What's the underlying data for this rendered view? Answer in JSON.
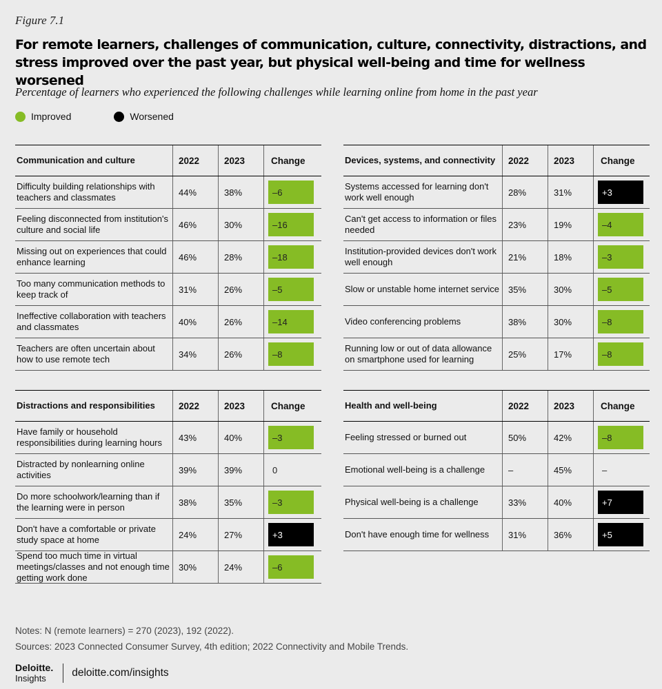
{
  "figure_label": "Figure 7.1",
  "title": "For remote learners, challenges of communication, culture, connectivity, distractions, and stress improved over the past year, but physical well-being and time for wellness worsened",
  "subtitle": "Percentage of learners who experienced the following challenges while learning online from home in the past year",
  "colors": {
    "improved": "#86bc25",
    "worsened": "#000000",
    "background": "#ebebeb"
  },
  "legend": {
    "improved": "Improved",
    "worsened": "Worsened"
  },
  "chart_data": {
    "type": "table",
    "columns": [
      "2022",
      "2023",
      "Change"
    ],
    "panels": [
      {
        "name": "Communication and culture",
        "rows": [
          {
            "label": "Difficulty building relationships with teachers and classmates",
            "y2022": "44%",
            "y2023": "38%",
            "change": "–6",
            "status": "improved"
          },
          {
            "label": "Feeling disconnected from institution's culture and social life",
            "y2022": "46%",
            "y2023": "30%",
            "change": "–16",
            "status": "improved"
          },
          {
            "label": "Missing out on experiences that could enhance learning",
            "y2022": "46%",
            "y2023": "28%",
            "change": "–18",
            "status": "improved"
          },
          {
            "label": "Too many communication methods to keep track of",
            "y2022": "31%",
            "y2023": "26%",
            "change": "–5",
            "status": "improved"
          },
          {
            "label": "Ineffective collaboration with teachers and classmates",
            "y2022": "40%",
            "y2023": "26%",
            "change": "–14",
            "status": "improved"
          },
          {
            "label": "Teachers are often uncertain about how to use remote tech",
            "y2022": "34%",
            "y2023": "26%",
            "change": "–8",
            "status": "improved"
          }
        ]
      },
      {
        "name": "Devices, systems, and connectivity",
        "rows": [
          {
            "label": "Systems accessed for learning don't work well enough",
            "y2022": "28%",
            "y2023": "31%",
            "change": "+3",
            "status": "worsened"
          },
          {
            "label": "Can't get access to information or files needed",
            "y2022": "23%",
            "y2023": "19%",
            "change": "–4",
            "status": "improved"
          },
          {
            "label": "Institution-provided devices don't work well enough",
            "y2022": "21%",
            "y2023": "18%",
            "change": "–3",
            "status": "improved"
          },
          {
            "label": "Slow or unstable home internet service",
            "y2022": "35%",
            "y2023": "30%",
            "change": "–5",
            "status": "improved"
          },
          {
            "label": "Video conferencing problems",
            "y2022": "38%",
            "y2023": "30%",
            "change": "–8",
            "status": "improved"
          },
          {
            "label": "Running low or out of data allowance on smartphone used for learning",
            "y2022": "25%",
            "y2023": "17%",
            "change": "–8",
            "status": "improved"
          }
        ]
      },
      {
        "name": "Distractions and responsibilities",
        "rows": [
          {
            "label": "Have family or household responsibilities during learning hours",
            "y2022": "43%",
            "y2023": "40%",
            "change": "–3",
            "status": "improved"
          },
          {
            "label": "Distracted by nonlearning online activities",
            "y2022": "39%",
            "y2023": "39%",
            "change": "0",
            "status": "neutral"
          },
          {
            "label": "Do more schoolwork/learning than if the learning were in person",
            "y2022": "38%",
            "y2023": "35%",
            "change": "–3",
            "status": "improved"
          },
          {
            "label": "Don't have a comfortable or private study space at home",
            "y2022": "24%",
            "y2023": "27%",
            "change": "+3",
            "status": "worsened"
          },
          {
            "label": "Spend too much time in virtual meetings/classes and not enough time getting work done",
            "y2022": "30%",
            "y2023": "24%",
            "change": "–6",
            "status": "improved"
          }
        ]
      },
      {
        "name": "Health and well-being",
        "rows": [
          {
            "label": "Feeling stressed or burned out",
            "y2022": "50%",
            "y2023": "42%",
            "change": "–8",
            "status": "improved"
          },
          {
            "label": "Emotional well-being is a challenge",
            "y2022": "–",
            "y2023": "45%",
            "change": "–",
            "status": "neutral"
          },
          {
            "label": "Physical well-being is a challenge",
            "y2022": "33%",
            "y2023": "40%",
            "change": "+7",
            "status": "worsened"
          },
          {
            "label": "Don't have enough time for wellness",
            "y2022": "31%",
            "y2023": "36%",
            "change": "+5",
            "status": "worsened"
          }
        ]
      }
    ]
  },
  "notes": "Notes: N (remote learners) = 270 (2023), 192 (2022).",
  "sources": "Sources: 2023 Connected Consumer Survey, 4th edition; 2022 Connectivity and Mobile Trends.",
  "brand": {
    "name": "Deloitte.",
    "sub": "Insights",
    "url": "deloitte.com/insights"
  }
}
